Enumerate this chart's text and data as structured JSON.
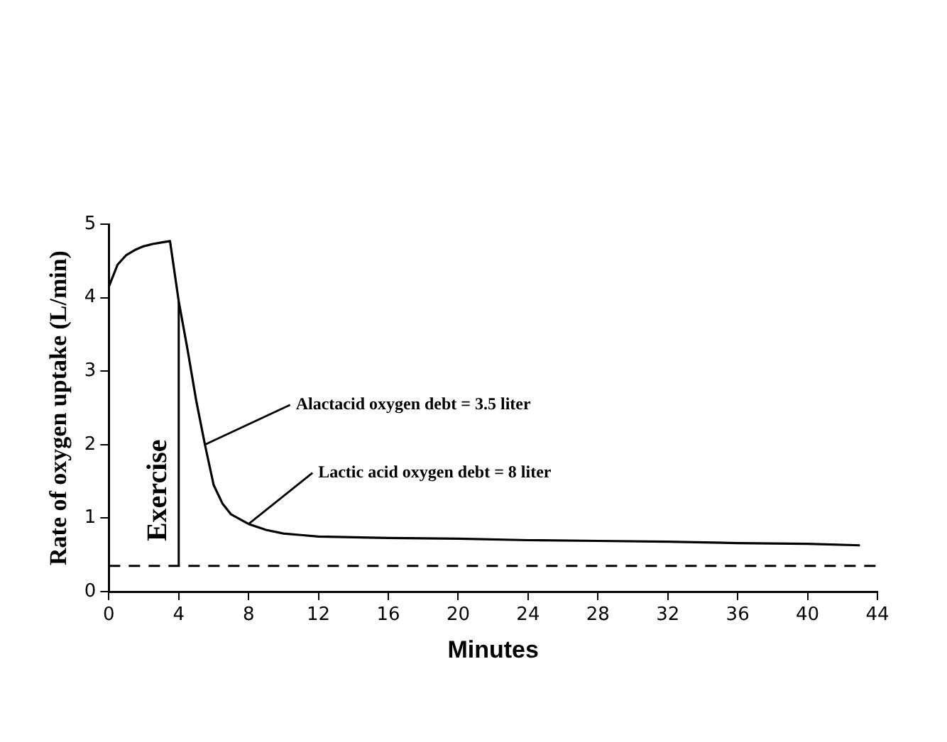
{
  "chart_data": {
    "type": "line",
    "xlabel": "Minutes",
    "ylabel": "Rate of oxygen uptake (L/min)",
    "series": [
      {
        "color": "#000000",
        "x": [
          0,
          0.5,
          1,
          1.5,
          2,
          2.5,
          3,
          3.5,
          4,
          4.5,
          5,
          5.5,
          6,
          6.5,
          7,
          8,
          9,
          10,
          11,
          12,
          14,
          16,
          20,
          24,
          28,
          32,
          36,
          40,
          43
        ],
        "values": [
          4.15,
          4.45,
          4.58,
          4.65,
          4.7,
          4.73,
          4.75,
          4.77,
          3.95,
          3.3,
          2.6,
          2.0,
          1.45,
          1.2,
          1.05,
          0.92,
          0.84,
          0.79,
          0.77,
          0.75,
          0.74,
          0.73,
          0.72,
          0.7,
          0.69,
          0.68,
          0.66,
          0.65,
          0.63
        ]
      }
    ],
    "xlim": [
      0,
      44
    ],
    "xticks": [
      0,
      4,
      8,
      12,
      16,
      20,
      24,
      28,
      32,
      36,
      40,
      44
    ],
    "ylim": [
      0,
      5
    ],
    "yticks": [
      0,
      1,
      2,
      3,
      4,
      5
    ],
    "ref_lines": [
      {
        "axis": "y",
        "value": 0.35,
        "line_style": "dashed",
        "color": "#000000"
      },
      {
        "axis": "x",
        "value": 4,
        "label": "Exercise",
        "color": "#000000",
        "line_style": "solid"
      }
    ],
    "annotations": [
      {
        "text": "Alactacid oxygen debt = 3.5 liter",
        "x": 5.5,
        "y": 2.0
      },
      {
        "text": "Lactic acid oxygen debt = 8 liter",
        "x": 8,
        "y": 0.92
      }
    ],
    "grid": false,
    "legend": false,
    "marker": "none",
    "line_style": "solid"
  }
}
